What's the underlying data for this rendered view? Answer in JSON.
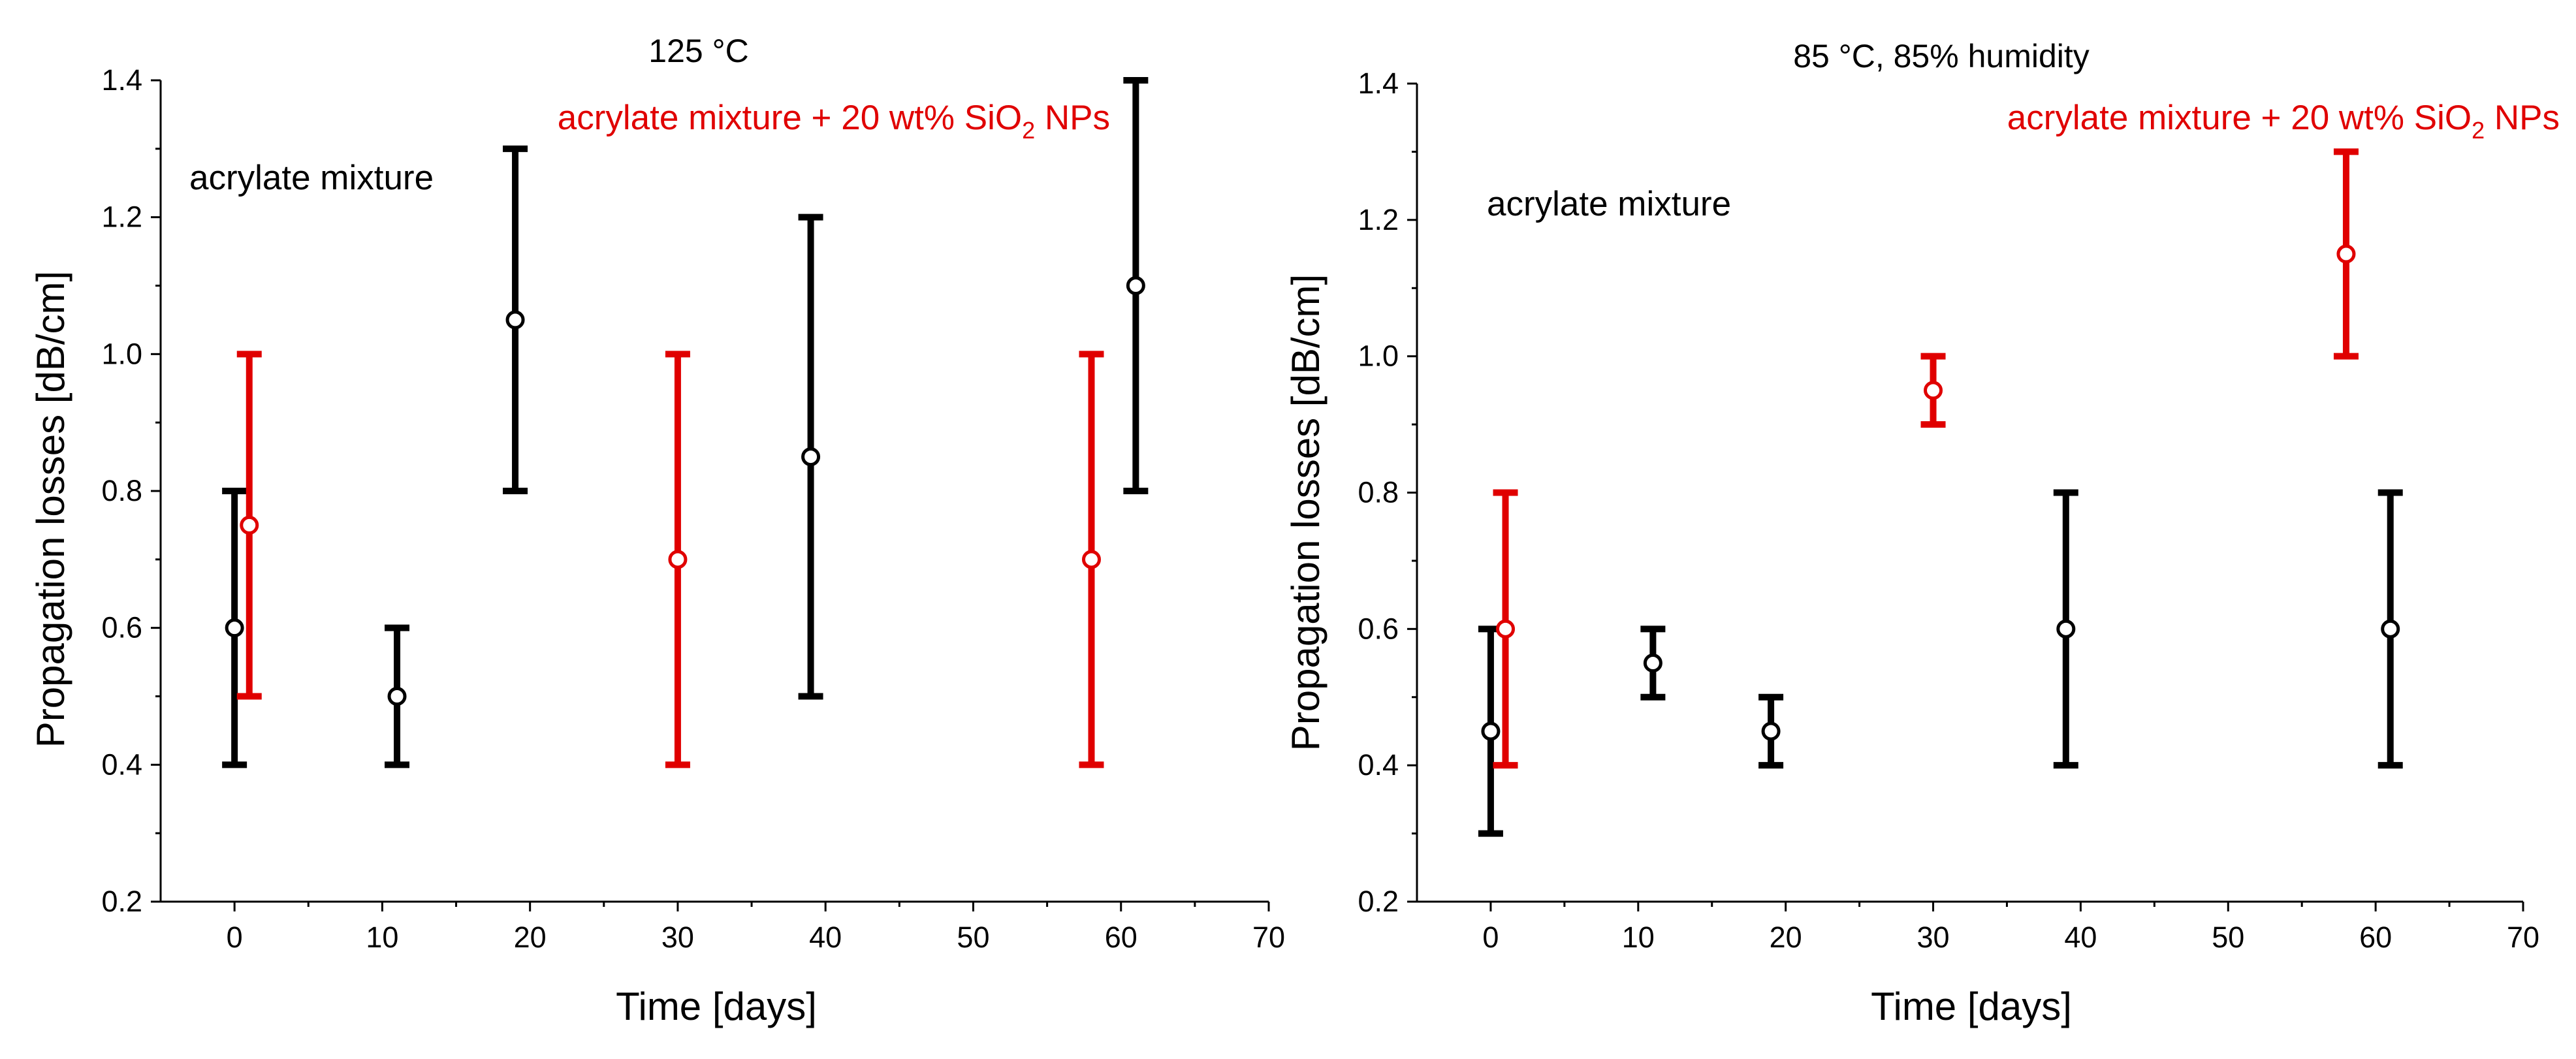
{
  "chart_data": [
    {
      "type": "scatter",
      "title": "125 °C",
      "xlabel": "Time [days]",
      "ylabel": "Propagation losses [dB/cm]",
      "xlim": [
        -5,
        70
      ],
      "ylim": [
        0.2,
        1.4
      ],
      "xticks": [
        0,
        10,
        20,
        30,
        40,
        50,
        60,
        70
      ],
      "yticks": [
        0.2,
        0.4,
        0.6,
        0.8,
        1.0,
        1.2,
        1.4
      ],
      "xtick_labels": [
        "0",
        "10",
        "20",
        "30",
        "40",
        "50",
        "60",
        "70"
      ],
      "ytick_labels": [
        "0.2",
        "0.4",
        "0.6",
        "0.8",
        "1.0",
        "1.2",
        "1.4"
      ],
      "legend_position": "top",
      "series": [
        {
          "name": "acrylate mixture",
          "label_parts": {
            "text": "acrylate mixture"
          },
          "color": "#000000",
          "points": [
            {
              "x": 0,
              "y": 0.6,
              "low": 0.4,
              "high": 0.8
            },
            {
              "x": 11,
              "y": 0.5,
              "low": 0.4,
              "high": 0.6
            },
            {
              "x": 19,
              "y": 1.05,
              "low": 0.8,
              "high": 1.3
            },
            {
              "x": 39,
              "y": 0.85,
              "low": 0.5,
              "high": 1.2
            },
            {
              "x": 61,
              "y": 1.1,
              "low": 0.8,
              "high": 1.4
            }
          ]
        },
        {
          "name": "acrylate mixture + 20 wt% SiO2 NPs",
          "label_parts": {
            "before": "acrylate mixture + 20 wt% SiO",
            "sub": "2",
            "after": " NPs"
          },
          "color": "#e00000",
          "points": [
            {
              "x": 1,
              "y": 0.75,
              "low": 0.5,
              "high": 1.0
            },
            {
              "x": 30,
              "y": 0.7,
              "low": 0.4,
              "high": 1.0
            },
            {
              "x": 58,
              "y": 0.7,
              "low": 0.4,
              "high": 1.0
            }
          ]
        }
      ]
    },
    {
      "type": "scatter",
      "title": "85 °C, 85% humidity",
      "xlabel": "Time [days]",
      "ylabel": "Propagation losses [dB/cm]",
      "xlim": [
        -5,
        70
      ],
      "ylim": [
        0.2,
        1.4
      ],
      "xticks": [
        0,
        10,
        20,
        30,
        40,
        50,
        60,
        70
      ],
      "yticks": [
        0.2,
        0.4,
        0.6,
        0.8,
        1.0,
        1.2,
        1.4
      ],
      "xtick_labels": [
        "0",
        "10",
        "20",
        "30",
        "40",
        "50",
        "60",
        "70"
      ],
      "ytick_labels": [
        "0.2",
        "0.4",
        "0.6",
        "0.8",
        "1.0",
        "1.2",
        "1.4"
      ],
      "legend_position": "top-right",
      "series": [
        {
          "name": "acrylate mixture",
          "label_parts": {
            "text": "acrylate mixture"
          },
          "color": "#000000",
          "points": [
            {
              "x": 0,
              "y": 0.45,
              "low": 0.3,
              "high": 0.6
            },
            {
              "x": 11,
              "y": 0.55,
              "low": 0.5,
              "high": 0.6
            },
            {
              "x": 19,
              "y": 0.45,
              "low": 0.4,
              "high": 0.5
            },
            {
              "x": 39,
              "y": 0.6,
              "low": 0.4,
              "high": 0.8
            },
            {
              "x": 61,
              "y": 0.6,
              "low": 0.4,
              "high": 0.8
            }
          ]
        },
        {
          "name": "acrylate mixture + 20 wt% SiO2 NPs",
          "label_parts": {
            "before": "acrylate mixture + 20 wt% SiO",
            "sub": "2",
            "after": " NPs"
          },
          "color": "#e00000",
          "points": [
            {
              "x": 1,
              "y": 0.6,
              "low": 0.4,
              "high": 0.8
            },
            {
              "x": 30,
              "y": 0.95,
              "low": 0.9,
              "high": 1.0
            },
            {
              "x": 58,
              "y": 1.15,
              "low": 1.0,
              "high": 1.3
            }
          ]
        }
      ]
    }
  ]
}
